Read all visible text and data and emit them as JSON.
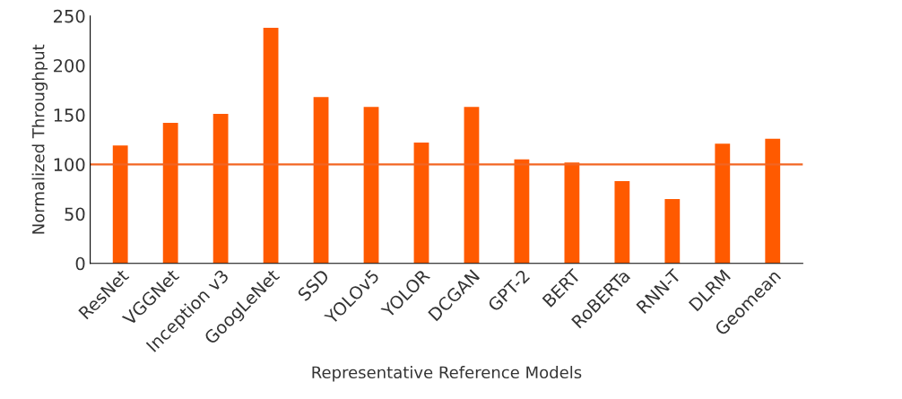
{
  "chart_data": {
    "type": "bar",
    "xlabel": "Representative Reference Models",
    "ylabel": "Normalized Throughput",
    "categories": [
      "ResNet",
      "VGGNet",
      "Inception v3",
      "GoogLeNet",
      "SSD",
      "YOLOv5",
      "YOLOR",
      "DCGAN",
      "GPT-2",
      "BERT",
      "RoBERTa",
      "RNN-T",
      "DLRM",
      "Geomean"
    ],
    "values": [
      119,
      142,
      151,
      238,
      168,
      158,
      122,
      158,
      105,
      102,
      83,
      65,
      121,
      126
    ],
    "color": "#ff5a00",
    "ylim": [
      0,
      250
    ],
    "yticks": [
      0,
      50,
      100,
      150,
      200,
      250
    ],
    "grid": false,
    "ref_lines": [
      {
        "axis": "y",
        "value": 100,
        "color": "#f26522"
      }
    ]
  }
}
